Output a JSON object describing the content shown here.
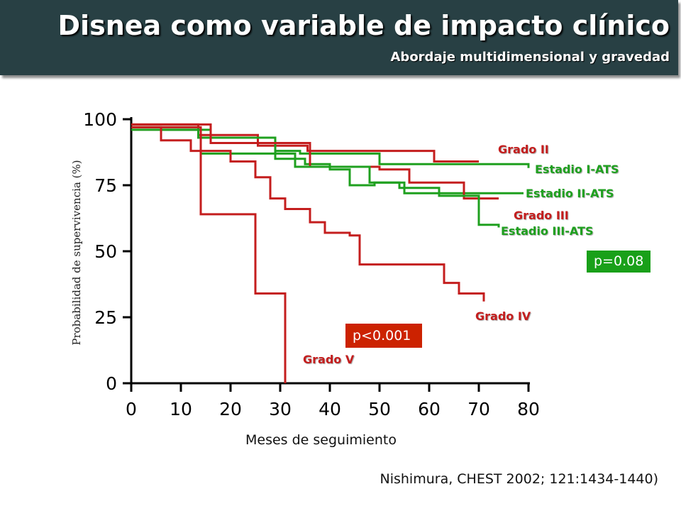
{
  "header": {
    "title": "Disnea como variable de impacto clínico",
    "subtitle": "Abordaje multidimensional  y gravedad"
  },
  "citation": "Nishimura, CHEST 2002; 121:1434-1440)",
  "pvalues": {
    "red": {
      "text": "p<0.001",
      "color": "#cc2200"
    },
    "green": {
      "text": "p=0.08",
      "color": "#19a019"
    }
  },
  "colors": {
    "red": "#c41e1e",
    "green": "#1fa01f",
    "background": "#ffffff",
    "header": "#284044"
  },
  "chart_data": {
    "type": "line",
    "step": true,
    "xlabel": "Meses de seguimiento",
    "ylabel": "Probabilidad de supervivencia (%)",
    "xlim": [
      0,
      80
    ],
    "ylim": [
      0,
      100
    ],
    "xticks": [
      0,
      10,
      20,
      30,
      40,
      50,
      60,
      70,
      80
    ],
    "yticks": [
      0,
      25,
      50,
      75,
      100
    ],
    "grid": false,
    "series": [
      {
        "name": "Grado II",
        "color": "red",
        "x": [
          0,
          13.5,
          25.5,
          35.5,
          61,
          70
        ],
        "y": [
          98,
          94,
          90,
          88,
          84,
          84
        ]
      },
      {
        "name": "Estadio I-ATS",
        "color": "green",
        "x": [
          0,
          6,
          16,
          29,
          34,
          50,
          80
        ],
        "y": [
          97,
          96,
          91,
          88,
          87,
          83,
          81.5
        ]
      },
      {
        "name": "Estadio II-ATS",
        "color": "green",
        "x": [
          0,
          13.5,
          29,
          35,
          40,
          44,
          49,
          55,
          79
        ],
        "y": [
          97,
          93,
          85,
          83,
          81,
          75,
          76,
          72,
          72
        ]
      },
      {
        "name": "Grado III",
        "color": "red",
        "x": [
          0,
          16,
          36,
          50,
          56,
          67,
          74
        ],
        "y": [
          98,
          91,
          82,
          81,
          76,
          70,
          70
        ]
      },
      {
        "name": "Estadio III-ATS",
        "color": "green",
        "x": [
          0,
          14,
          29,
          33,
          48,
          54,
          62,
          70,
          74
        ],
        "y": [
          96,
          87,
          87,
          82,
          76,
          74,
          71,
          60,
          59
        ]
      },
      {
        "name": "Grado IV",
        "color": "red",
        "x": [
          0,
          6,
          12,
          20,
          25,
          28,
          31,
          36,
          39,
          44,
          46,
          56,
          63,
          66,
          71
        ],
        "y": [
          97,
          92,
          88,
          84,
          78,
          70,
          66,
          61,
          57,
          56,
          45,
          45,
          38,
          34,
          31
        ]
      },
      {
        "name": "Grado V",
        "color": "red",
        "x": [
          0,
          14,
          25,
          31,
          31
        ],
        "y": [
          97,
          64,
          34,
          34,
          0
        ]
      }
    ],
    "annotations": [
      {
        "text": "p<0.001",
        "box_color": "red"
      },
      {
        "text": "p=0.08",
        "box_color": "green"
      }
    ]
  }
}
